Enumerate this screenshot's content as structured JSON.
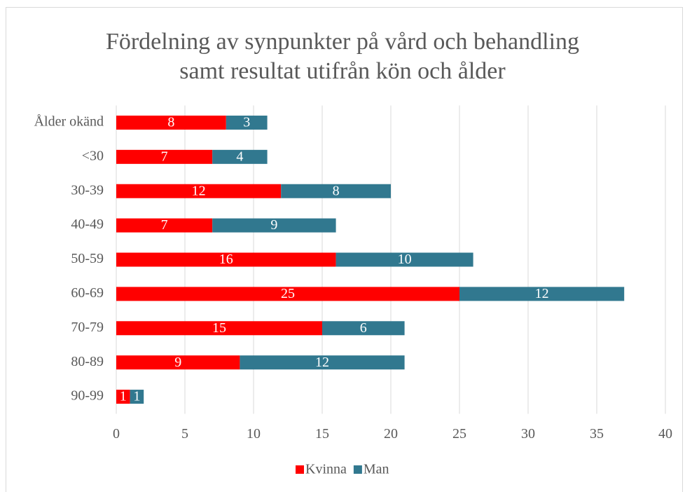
{
  "chart_data": {
    "type": "stacked-bar-horizontal",
    "title": [
      "Fördelning av synpunkter på vård och behandling",
      "samt resultat utifrån kön och ålder"
    ],
    "categories": [
      "Ålder okänd",
      "<30",
      "30-39",
      "40-49",
      "50-59",
      "60-69",
      "70-79",
      "80-89",
      "90-99"
    ],
    "series": [
      {
        "name": "Kvinna",
        "color": "#ff0000",
        "values": [
          8,
          7,
          12,
          7,
          16,
          25,
          15,
          9,
          1
        ]
      },
      {
        "name": "Man",
        "color": "#31788f",
        "values": [
          3,
          4,
          8,
          9,
          10,
          12,
          6,
          12,
          1
        ]
      }
    ],
    "xlim": [
      0,
      40
    ],
    "xticks": [
      0,
      5,
      10,
      15,
      20,
      25,
      30,
      35,
      40
    ],
    "grid": true,
    "legend": "bottom"
  }
}
